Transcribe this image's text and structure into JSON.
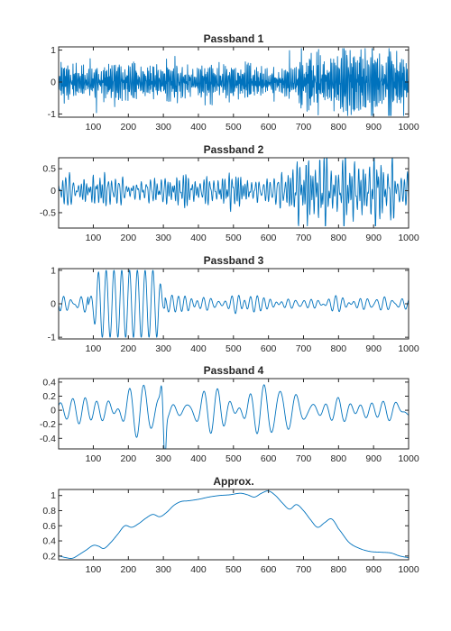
{
  "figure": {
    "line_color": "#0072BD",
    "axis_color": "#262626",
    "background": "#ffffff"
  },
  "chart_data": [
    {
      "type": "line",
      "title": "Passband 1",
      "xlim": [
        1,
        1000
      ],
      "ylim": [
        -1.1,
        1.1
      ],
      "xticks": [
        100,
        200,
        300,
        400,
        500,
        600,
        700,
        800,
        900,
        1000
      ],
      "yticks": [
        -1,
        0,
        1
      ],
      "series": [
        {
          "x_range": [
            1,
            1000
          ],
          "n_points": 1000,
          "description": "high-frequency noise, amplitude about 0.5 on 1-700 and about 0.9 on 700-1000"
        }
      ]
    },
    {
      "type": "line",
      "title": "Passband 2",
      "xlim": [
        1,
        1000
      ],
      "ylim": [
        -0.85,
        0.75
      ],
      "xticks": [
        100,
        200,
        300,
        400,
        500,
        600,
        700,
        800,
        900,
        1000
      ],
      "yticks": [
        -0.5,
        0,
        0.5
      ],
      "series": [
        {
          "x_range": [
            1,
            1000
          ],
          "n_points": 1000,
          "description": "oscillation amplitude about 0.3 on 1-700, about 0.6 on 700-1000"
        }
      ]
    },
    {
      "type": "line",
      "title": "Passband 3",
      "xlim": [
        1,
        1000
      ],
      "ylim": [
        -1.05,
        1.05
      ],
      "xticks": [
        100,
        200,
        300,
        400,
        500,
        600,
        700,
        800,
        900,
        1000
      ],
      "yticks": [
        -1,
        0,
        1
      ],
      "series": [
        {
          "x_range": [
            1,
            1000
          ],
          "n_points": 1000,
          "description": "burst of amplitude about 1 between 90 and 300, about 0.15 elsewhere"
        }
      ]
    },
    {
      "type": "line",
      "title": "Passband 4",
      "xlim": [
        1,
        1000
      ],
      "ylim": [
        -0.55,
        0.45
      ],
      "xticks": [
        100,
        200,
        300,
        400,
        500,
        600,
        700,
        800,
        900,
        1000
      ],
      "yticks": [
        -0.4,
        -0.2,
        0,
        0.2,
        0.4
      ],
      "series": [
        {
          "x_range": [
            1,
            1000
          ],
          "n_points": 1000,
          "description": "low-frequency oscillation amplitude about 0.2, spike to about 0.45 and -0.55 near 300"
        }
      ]
    },
    {
      "type": "line",
      "title": "Approx.",
      "xlim": [
        1,
        1000
      ],
      "ylim": [
        0.15,
        1.08
      ],
      "xticks": [
        100,
        200,
        300,
        400,
        500,
        600,
        700,
        800,
        900,
        1000
      ],
      "yticks": [
        0.2,
        0.4,
        0.6,
        0.8,
        1
      ],
      "series": [
        {
          "x": [
            1,
            20,
            40,
            60,
            80,
            100,
            115,
            130,
            150,
            170,
            190,
            210,
            230,
            250,
            270,
            290,
            310,
            330,
            350,
            370,
            400,
            430,
            460,
            490,
            520,
            540,
            560,
            580,
            600,
            620,
            640,
            660,
            680,
            700,
            720,
            740,
            760,
            780,
            800,
            830,
            860,
            890,
            920,
            950,
            975,
            1000
          ],
          "y": [
            0.2,
            0.18,
            0.17,
            0.22,
            0.28,
            0.34,
            0.33,
            0.3,
            0.38,
            0.49,
            0.6,
            0.58,
            0.63,
            0.7,
            0.75,
            0.72,
            0.78,
            0.87,
            0.92,
            0.93,
            0.95,
            0.98,
            1.0,
            1.01,
            1.03,
            1.01,
            0.98,
            1.03,
            1.06,
            1.0,
            0.9,
            0.82,
            0.88,
            0.8,
            0.68,
            0.58,
            0.64,
            0.69,
            0.56,
            0.38,
            0.3,
            0.26,
            0.25,
            0.24,
            0.2,
            0.18
          ]
        }
      ]
    }
  ]
}
